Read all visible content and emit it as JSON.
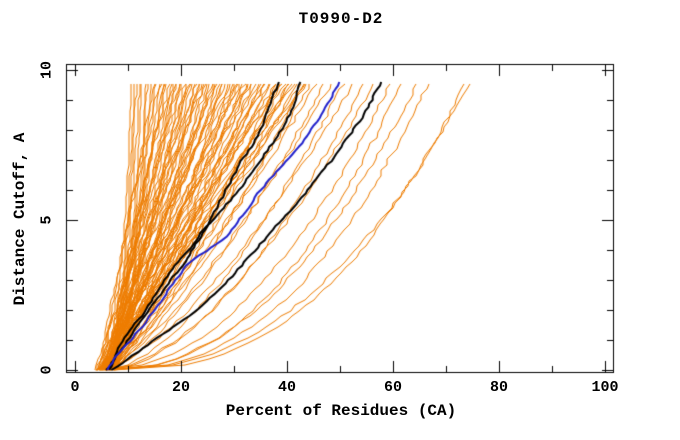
{
  "title": "T0990-D2",
  "chart_data": {
    "type": "line",
    "title": "T0990-D2",
    "xlabel": "Percent of Residues (CA)",
    "ylabel": "Distance Cutoff, A",
    "xlim": [
      0,
      100
    ],
    "ylim": [
      0,
      10
    ],
    "grid": false,
    "legend": "none",
    "x_major_ticks": [
      0,
      20,
      40,
      60,
      80,
      100
    ],
    "x_minor_ticks": [
      10,
      30,
      50,
      70,
      90
    ],
    "y_major_ticks": [
      0,
      5,
      10
    ],
    "y_minor_ticks": [
      1,
      2,
      3,
      4,
      6,
      7,
      8,
      9
    ],
    "curve_y_max": 9.7,
    "colors": {
      "ensemble": "#ee7c00",
      "highlight": "#000000",
      "reference": "#2222cc",
      "axes": "#000000",
      "background": "#ffffff"
    },
    "ensemble_curves": [
      [
        4,
        10.5,
        0.32
      ],
      [
        4.5,
        11,
        0.3
      ],
      [
        5,
        11.5,
        0.4
      ],
      [
        4,
        12,
        0.34
      ],
      [
        5,
        12.5,
        0.38
      ],
      [
        5.5,
        13.2,
        0.3
      ],
      [
        4.5,
        13.6,
        0.42
      ],
      [
        5,
        14.2,
        0.36
      ],
      [
        5,
        15,
        1.0
      ],
      [
        6,
        15.5,
        0.85
      ],
      [
        4.5,
        16,
        1.1
      ],
      [
        7,
        16.3,
        0.95
      ],
      [
        5.5,
        16.8,
        0.75
      ],
      [
        6.5,
        17.2,
        1.05
      ],
      [
        4,
        17.6,
        0.9
      ],
      [
        6,
        18,
        1.15
      ],
      [
        5,
        18.3,
        0.8
      ],
      [
        7.5,
        18.7,
        1.0
      ],
      [
        5,
        19,
        0.7
      ],
      [
        6,
        19.4,
        1.1
      ],
      [
        4.5,
        19.8,
        1.0
      ],
      [
        7,
        20.2,
        0.85
      ],
      [
        5.5,
        20.5,
        1.1
      ],
      [
        6.5,
        20.9,
        0.95
      ],
      [
        4,
        21.2,
        0.75
      ],
      [
        6,
        21.6,
        1.05
      ],
      [
        5,
        22,
        0.9
      ],
      [
        7.5,
        22.4,
        1.15
      ],
      [
        5,
        22.8,
        0.8
      ],
      [
        6,
        23.1,
        1.0
      ],
      [
        4.5,
        23.5,
        0.7
      ],
      [
        7,
        23.9,
        1.1
      ],
      [
        5.5,
        24.2,
        1.0
      ],
      [
        6.5,
        24.6,
        0.85
      ],
      [
        4,
        25,
        1.1
      ],
      [
        6,
        25.4,
        0.95
      ],
      [
        5,
        25.8,
        0.75
      ],
      [
        7.5,
        26.1,
        1.05
      ],
      [
        5,
        26.5,
        0.9
      ],
      [
        6,
        26.9,
        1.15
      ],
      [
        4.5,
        27.2,
        0.8
      ],
      [
        7,
        27.6,
        1.0
      ],
      [
        5.5,
        28,
        0.7
      ],
      [
        6.5,
        28.4,
        1.1
      ],
      [
        4,
        28.8,
        1.0
      ],
      [
        6,
        29.2,
        0.85
      ],
      [
        5,
        29.6,
        1.1
      ],
      [
        7.5,
        30,
        0.95
      ],
      [
        5,
        30.4,
        0.75
      ],
      [
        6,
        30.8,
        1.05
      ],
      [
        4.5,
        31.2,
        0.9
      ],
      [
        7,
        31.6,
        1.15
      ],
      [
        5.5,
        32,
        0.8
      ],
      [
        6.5,
        32.4,
        1.0
      ],
      [
        4,
        32.8,
        0.7
      ],
      [
        6,
        33.2,
        1.1
      ],
      [
        5,
        33.6,
        1.0
      ],
      [
        7.5,
        34,
        0.85
      ],
      [
        5,
        34.5,
        1.1
      ],
      [
        6,
        35,
        0.95
      ],
      [
        4.5,
        35.4,
        0.75
      ],
      [
        7,
        35.8,
        1.05
      ],
      [
        5.5,
        36.2,
        0.9
      ],
      [
        6.5,
        36.6,
        1.15
      ],
      [
        4,
        37,
        0.8
      ],
      [
        6,
        37.5,
        1.0
      ],
      [
        5,
        38,
        0.7
      ],
      [
        7.5,
        38.4,
        1.1
      ],
      [
        5,
        38.8,
        1.0
      ],
      [
        6,
        39.2,
        0.85
      ],
      [
        4.5,
        39.6,
        1.1
      ],
      [
        7,
        40,
        0.95
      ],
      [
        5.5,
        40.5,
        0.75
      ],
      [
        6.5,
        41,
        1.05
      ],
      [
        4,
        41.5,
        0.9
      ],
      [
        6,
        42,
        1.15
      ],
      [
        5,
        42.5,
        0.8
      ],
      [
        7.5,
        43,
        1.0
      ],
      [
        5,
        43.5,
        0.7
      ],
      [
        6,
        44,
        1.1
      ],
      [
        4.5,
        44.5,
        1.0
      ],
      [
        7,
        45,
        0.85
      ],
      [
        5,
        46,
        0.8
      ],
      [
        6,
        47.5,
        0.7
      ],
      [
        5.5,
        49,
        0.75
      ],
      [
        6,
        51,
        0.62
      ],
      [
        5,
        53,
        0.68
      ],
      [
        6.5,
        55,
        0.58
      ],
      [
        6,
        57,
        0.6
      ],
      [
        5.5,
        60,
        0.5
      ],
      [
        6,
        62,
        0.45
      ],
      [
        7,
        65,
        0.48
      ],
      [
        6,
        67,
        0.42
      ],
      [
        7,
        74,
        0.4
      ],
      [
        6.5,
        75,
        0.44
      ]
    ],
    "highlight_curves": [
      {
        "name": "black-model-1",
        "color": "#000000",
        "width": 2,
        "points": [
          [
            6,
            0
          ],
          [
            8,
            0.5
          ],
          [
            10,
            1
          ],
          [
            12,
            1.5
          ],
          [
            14,
            2
          ],
          [
            16,
            2.5
          ],
          [
            18,
            3
          ],
          [
            20.5,
            3.5
          ],
          [
            22,
            4
          ],
          [
            24,
            4.5
          ],
          [
            25.5,
            5
          ],
          [
            27,
            5.5
          ],
          [
            28.5,
            6
          ],
          [
            30,
            6.5
          ],
          [
            31.5,
            7
          ],
          [
            33.5,
            7.5
          ],
          [
            35,
            8
          ],
          [
            36,
            8.5
          ],
          [
            37,
            9
          ],
          [
            38,
            9.4
          ],
          [
            38.5,
            9.7
          ]
        ]
      },
      {
        "name": "black-model-2",
        "color": "#000000",
        "width": 2,
        "points": [
          [
            6.5,
            0
          ],
          [
            7.5,
            0.5
          ],
          [
            9,
            1
          ],
          [
            11,
            1.5
          ],
          [
            13.5,
            2
          ],
          [
            15,
            2.5
          ],
          [
            17,
            3
          ],
          [
            19,
            3.5
          ],
          [
            21.5,
            4
          ],
          [
            23.5,
            4.5
          ],
          [
            26,
            5
          ],
          [
            28.5,
            5.5
          ],
          [
            31,
            6
          ],
          [
            33,
            6.5
          ],
          [
            35,
            7
          ],
          [
            37,
            7.5
          ],
          [
            39,
            8
          ],
          [
            40.5,
            8.5
          ],
          [
            41.5,
            9
          ],
          [
            42.5,
            9.7
          ]
        ]
      },
      {
        "name": "black-model-3",
        "color": "#000000",
        "width": 2,
        "points": [
          [
            7,
            0
          ],
          [
            11,
            0.5
          ],
          [
            15,
            1
          ],
          [
            19,
            1.5
          ],
          [
            23,
            2
          ],
          [
            26,
            2.5
          ],
          [
            29,
            3
          ],
          [
            31.5,
            3.5
          ],
          [
            34,
            4
          ],
          [
            36.5,
            4.5
          ],
          [
            39,
            5
          ],
          [
            41.5,
            5.5
          ],
          [
            44,
            6
          ],
          [
            46,
            6.5
          ],
          [
            48.5,
            7
          ],
          [
            50.5,
            7.5
          ],
          [
            52.5,
            8
          ],
          [
            54.5,
            8.5
          ],
          [
            56,
            9
          ],
          [
            58,
            9.7
          ]
        ]
      },
      {
        "name": "blue-model",
        "color": "#2222cc",
        "width": 2,
        "points": [
          [
            6,
            0
          ],
          [
            8,
            0.5
          ],
          [
            10.5,
            1
          ],
          [
            13,
            1.5
          ],
          [
            15,
            2
          ],
          [
            17,
            2.5
          ],
          [
            19,
            3
          ],
          [
            21,
            3.5
          ],
          [
            25,
            4
          ],
          [
            29,
            4.5
          ],
          [
            31,
            5
          ],
          [
            33,
            5.5
          ],
          [
            35,
            6
          ],
          [
            37.5,
            6.5
          ],
          [
            40,
            7
          ],
          [
            42.5,
            7.5
          ],
          [
            44.5,
            8
          ],
          [
            46.5,
            8.5
          ],
          [
            48,
            9
          ],
          [
            49.3,
            9.4
          ],
          [
            50,
            9.7
          ]
        ]
      }
    ]
  }
}
